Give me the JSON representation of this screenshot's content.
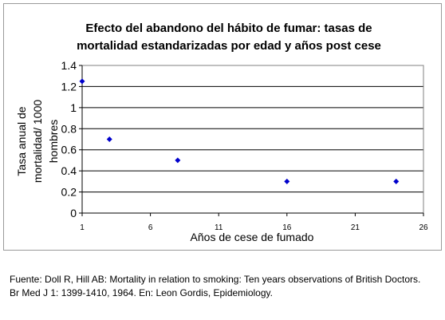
{
  "chart_data": {
    "type": "scatter",
    "title": "Efecto del abandono del hábito de fumar: tasas de mortalidad estandarizadas por edad y años post cese",
    "title_lines": [
      "Efecto del abandono del hábito de fumar: tasas de",
      "mortalidad estandarizadas por edad y años post cese"
    ],
    "xlabel": "Años de cese de fumado",
    "ylabel": "Tasa anual de mortalidad/ 1000 hombres",
    "ylabel_lines": [
      "Tasa anual de",
      "mortalidad/ 1000",
      "hombres"
    ],
    "x": [
      1,
      3,
      8,
      16,
      24
    ],
    "y": [
      1.25,
      0.7,
      0.5,
      0.3,
      0.3
    ],
    "xlim": [
      1,
      26
    ],
    "ylim": [
      0,
      1.4
    ],
    "x_ticks": [
      1,
      6,
      11,
      16,
      21,
      26
    ],
    "y_ticks": [
      0,
      0.2,
      0.4,
      0.6,
      0.8,
      1,
      1.2,
      1.4
    ],
    "y_tick_labels": [
      "0",
      "0.2",
      "0.4",
      "0.6",
      "0.8",
      "1",
      "1.2",
      "1.4"
    ],
    "grid": "horizontal",
    "marker_color": "#0000cc",
    "legend": "none"
  },
  "source": {
    "line1": "Fuente: Doll R, Hill AB: Mortality in relation to smoking: Ten years observations of British Doctors.",
    "line2": "Br Med J 1: 1399-1410, 1964. En: Leon Gordis, Epidemiology."
  }
}
